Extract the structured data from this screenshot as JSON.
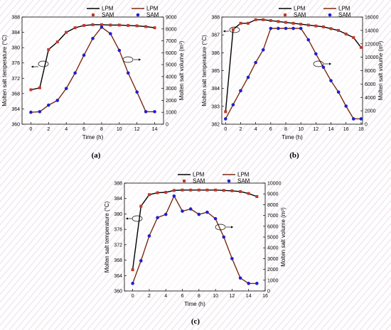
{
  "colors": {
    "temperature_line": "#000000",
    "volume_line": "#7a2a10",
    "sam_temperature_marker": "#c0392b",
    "sam_volume_marker": "#1f1fd0"
  },
  "legend": {
    "lpm": "LPM",
    "sam": "SAM"
  },
  "chart_data": [
    {
      "panel": "(a)",
      "type": "line",
      "xlabel": "Time (h)",
      "ylabel_left": "Molten salt temperature (°C)",
      "ylabel_right": "Molten salt volume (m³)",
      "xlim": [
        -1,
        15
      ],
      "ylim_left": [
        360,
        388
      ],
      "ylim_right": [
        0,
        9000
      ],
      "xticks": [
        0,
        2,
        4,
        6,
        8,
        10,
        12,
        14
      ],
      "yticks_left": [
        360,
        364,
        368,
        372,
        376,
        380,
        384,
        388
      ],
      "yticks_right": [
        0,
        1000,
        2000,
        3000,
        4000,
        5000,
        6000,
        7000,
        8000,
        9000
      ],
      "x": [
        0,
        1,
        2,
        3,
        4,
        5,
        6,
        7,
        8,
        9,
        10,
        11,
        12,
        13,
        14
      ],
      "series": [
        {
          "name": "LPM",
          "axis": "left",
          "values": [
            369,
            369.5,
            379.5,
            381.5,
            384,
            385.2,
            385.8,
            386,
            386,
            385.9,
            385.9,
            385.8,
            385.7,
            385.5,
            385.2
          ]
        },
        {
          "name": "SAM",
          "axis": "left",
          "values": [
            369,
            369.5,
            379.5,
            381.5,
            384,
            385.2,
            385.8,
            386,
            386,
            385.9,
            385.9,
            385.8,
            385.7,
            385.5,
            385.2
          ]
        },
        {
          "name": "LPM",
          "axis": "right",
          "values": [
            1000,
            1050,
            1600,
            2000,
            3000,
            4300,
            5800,
            7200,
            8150,
            7600,
            6200,
            4300,
            2700,
            1050,
            1050
          ]
        },
        {
          "name": "SAM",
          "axis": "right",
          "values": [
            1000,
            1050,
            1600,
            2000,
            3000,
            4300,
            5800,
            7200,
            8150,
            7600,
            6200,
            4300,
            2700,
            1050,
            1050
          ]
        }
      ]
    },
    {
      "panel": "(b)",
      "type": "line",
      "xlabel": "Time (h)",
      "ylabel_left": "Molten salt temperature (°C)",
      "ylabel_right": "Molten salt volume (m³)",
      "xlim": [
        -0.5,
        18.2
      ],
      "ylim_left": [
        382,
        388
      ],
      "ylim_right": [
        0,
        16000
      ],
      "xticks": [
        0,
        2,
        4,
        6,
        8,
        10,
        12,
        14,
        16,
        18
      ],
      "yticks_left": [
        382,
        383,
        384,
        385,
        386,
        387,
        388
      ],
      "yticks_right": [
        0,
        2000,
        4000,
        6000,
        8000,
        10000,
        12000,
        14000,
        16000
      ],
      "x": [
        0,
        1,
        2,
        3,
        4,
        5,
        6,
        7,
        8,
        9,
        10,
        11,
        12,
        13,
        14,
        15,
        16,
        17,
        18
      ],
      "series": [
        {
          "name": "LPM",
          "axis": "left",
          "values": [
            382.7,
            387.3,
            387.65,
            387.65,
            387.85,
            387.85,
            387.8,
            387.75,
            387.7,
            387.65,
            387.6,
            387.55,
            387.5,
            387.45,
            387.35,
            387.25,
            387.05,
            386.85,
            386.3
          ]
        },
        {
          "name": "SAM",
          "axis": "left",
          "values": [
            382.7,
            387.3,
            387.65,
            387.65,
            387.85,
            387.85,
            387.8,
            387.75,
            387.7,
            387.65,
            387.6,
            387.55,
            387.5,
            387.45,
            387.35,
            387.25,
            387.05,
            386.85,
            386.3
          ]
        },
        {
          "name": "LPM",
          "axis": "right",
          "values": [
            800,
            2900,
            5000,
            7000,
            9200,
            11100,
            14300,
            14300,
            14300,
            14300,
            14300,
            12600,
            10500,
            8500,
            6500,
            4800,
            2700,
            800,
            800
          ]
        },
        {
          "name": "SAM",
          "axis": "right",
          "values": [
            800,
            2900,
            5000,
            7000,
            9200,
            11100,
            14300,
            14300,
            14300,
            14300,
            14300,
            12600,
            10500,
            8500,
            6500,
            4800,
            2700,
            800,
            800
          ]
        }
      ]
    },
    {
      "panel": "(c)",
      "type": "line",
      "xlabel": "Time (h)",
      "ylabel_left": "Molten salt temperature (°C)",
      "ylabel_right": "Molten salt volume (m³)",
      "xlim": [
        -1,
        16
      ],
      "ylim_left": [
        360,
        388
      ],
      "ylim_right": [
        0,
        10000
      ],
      "xticks": [
        0,
        2,
        4,
        6,
        8,
        10,
        12,
        14,
        16
      ],
      "yticks_left": [
        360,
        364,
        368,
        372,
        376,
        380,
        384,
        388
      ],
      "yticks_right": [
        0,
        1000,
        2000,
        3000,
        4000,
        5000,
        6000,
        7000,
        8000,
        9000,
        10000
      ],
      "x": [
        0,
        1,
        2,
        3,
        4,
        5,
        6,
        7,
        8,
        9,
        10,
        11,
        12,
        13,
        14,
        15
      ],
      "series": [
        {
          "name": "LPM",
          "axis": "left",
          "values": [
            365.5,
            382,
            385,
            385.5,
            385.6,
            386.1,
            386.2,
            386.2,
            386.2,
            386.2,
            386.2,
            386.1,
            386,
            385.8,
            385.3,
            384.5
          ]
        },
        {
          "name": "SAM",
          "axis": "left",
          "values": [
            365.5,
            382,
            385,
            385.5,
            385.6,
            386.1,
            386.2,
            386.2,
            386.2,
            386.2,
            386.2,
            386.1,
            386,
            385.8,
            385.3,
            384.5
          ]
        },
        {
          "name": "LPM",
          "axis": "right",
          "values": [
            700,
            2800,
            5100,
            6800,
            7100,
            8800,
            7400,
            7600,
            7100,
            7300,
            6700,
            5000,
            3000,
            1200,
            700,
            700
          ]
        },
        {
          "name": "SAM",
          "axis": "right",
          "values": [
            700,
            2800,
            5100,
            6800,
            7100,
            8800,
            7400,
            7600,
            7100,
            7300,
            6700,
            5000,
            3000,
            1200,
            700,
            700
          ]
        }
      ]
    }
  ]
}
